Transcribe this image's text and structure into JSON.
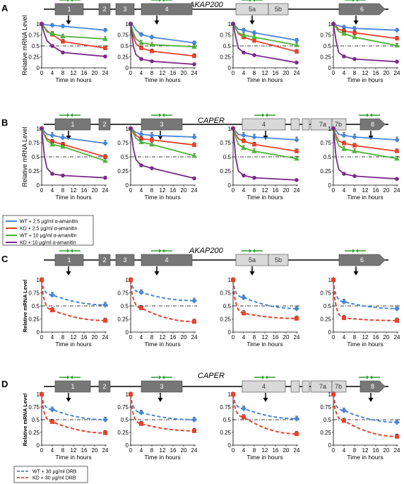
{
  "figure": {
    "panels": [
      {
        "label": "A",
        "gene": "AKAP200"
      },
      {
        "label": "B",
        "gene": "CAPER"
      },
      {
        "label": "C",
        "gene": "AKAP200"
      },
      {
        "label": "D",
        "gene": "CAPER"
      }
    ],
    "axis": {
      "xlabel": "Time in hours",
      "ylabel": "Relative mRNA Level",
      "xticks": [
        "0",
        "4",
        "8",
        "12",
        "16",
        "20",
        "24"
      ],
      "yticks": [
        "0",
        "0.25",
        "0.5",
        "0.75",
        "1"
      ]
    },
    "gene_models": {
      "AKAP200": [
        "1",
        "2",
        "3",
        "4",
        "5a",
        "5b",
        "6"
      ],
      "CAPER": [
        "1",
        "2",
        "3",
        "4",
        "7a",
        "7b",
        "8"
      ]
    },
    "legend_ab": [
      {
        "label": "WT + 2.5 µg/ml α-amanitin",
        "color": "#4a86d8"
      },
      {
        "label": "KD + 2.5 µg/ml α-amanitin",
        "color": "#e8412c"
      },
      {
        "label": "WT + 10 µg/ml α-amanitin",
        "color": "#4fb33a"
      },
      {
        "label": "KD + 10 µg/ml α-amanitin",
        "color": "#7a2a8a"
      }
    ],
    "legend_cd": [
      {
        "label": "WT + 30 µg/ml DRB",
        "color": "#4a86d8"
      },
      {
        "label": "KD + 30 µg/ml DRB",
        "color": "#e8412c"
      }
    ],
    "colors": {
      "wt_low": "#4a86d8",
      "kd_low": "#e8412c",
      "wt_high": "#4fb33a",
      "kd_high": "#7a2a8a",
      "exon_dark": "#777777",
      "exon_light": "#d9d9d9",
      "primer": "#2e9e2e"
    }
  },
  "chart_data": [
    {
      "type": "line",
      "panel": "A",
      "title": "AKAP200 exon 1",
      "xlabel": "Time in hours",
      "ylabel": "Relative mRNA Level",
      "x": [
        0,
        1,
        2,
        4,
        8,
        24
      ],
      "ylim": [
        0,
        1
      ],
      "xlim": [
        0,
        24
      ],
      "reference_line": 0.5,
      "series": [
        {
          "name": "WT + 2.5 µg/ml α-amanitin",
          "values": [
            1,
            0.99,
            0.98,
            0.97,
            0.95,
            0.86
          ]
        },
        {
          "name": "KD + 2.5 µg/ml α-amanitin",
          "values": [
            1,
            0.93,
            0.85,
            0.76,
            0.6,
            0.45
          ]
        },
        {
          "name": "WT + 10 µg/ml α-amanitin",
          "values": [
            1,
            0.92,
            0.82,
            0.78,
            0.72,
            0.66
          ]
        },
        {
          "name": "KD + 10 µg/ml α-amanitin",
          "values": [
            1,
            0.78,
            0.62,
            0.5,
            0.35,
            0.26
          ]
        }
      ]
    },
    {
      "type": "line",
      "panel": "A",
      "title": "AKAP200 exon 4",
      "xlabel": "Time in hours",
      "ylabel": "Relative mRNA Level",
      "x": [
        0,
        1,
        2,
        4,
        8,
        24
      ],
      "ylim": [
        0,
        1
      ],
      "xlim": [
        0,
        24
      ],
      "reference_line": 0.5,
      "series": [
        {
          "name": "WT + 2.5 µg/ml α-amanitin",
          "values": [
            1,
            0.96,
            0.86,
            0.76,
            0.7,
            0.57
          ]
        },
        {
          "name": "KD + 2.5 µg/ml α-amanitin",
          "values": [
            1,
            0.72,
            0.55,
            0.45,
            0.38,
            0.27
          ]
        },
        {
          "name": "WT + 10 µg/ml α-amanitin",
          "values": [
            1,
            0.8,
            0.66,
            0.57,
            0.53,
            0.48
          ]
        },
        {
          "name": "KD + 10 µg/ml α-amanitin",
          "values": [
            1,
            0.5,
            0.3,
            0.2,
            0.15,
            0.08
          ]
        }
      ]
    },
    {
      "type": "line",
      "panel": "A",
      "title": "AKAP200 exon 5a",
      "xlabel": "Time in hours",
      "ylabel": "Relative mRNA Level",
      "x": [
        0,
        1,
        2,
        4,
        8,
        24
      ],
      "ylim": [
        0,
        1
      ],
      "xlim": [
        0,
        24
      ],
      "reference_line": 0.5,
      "series": [
        {
          "name": "WT + 2.5 µg/ml α-amanitin",
          "values": [
            1,
            0.95,
            0.88,
            0.86,
            0.8,
            0.63
          ]
        },
        {
          "name": "KD + 2.5 µg/ml α-amanitin",
          "values": [
            1,
            0.9,
            0.78,
            0.7,
            0.62,
            0.37
          ]
        },
        {
          "name": "WT + 10 µg/ml α-amanitin",
          "values": [
            1,
            0.9,
            0.8,
            0.75,
            0.7,
            0.52
          ]
        },
        {
          "name": "KD + 10 µg/ml α-amanitin",
          "values": [
            1,
            0.7,
            0.45,
            0.35,
            0.29,
            0.12
          ]
        }
      ]
    },
    {
      "type": "line",
      "panel": "A",
      "title": "AKAP200 exon 6",
      "xlabel": "Time in hours",
      "ylabel": "Relative mRNA Level",
      "x": [
        0,
        1,
        2,
        4,
        8,
        24
      ],
      "ylim": [
        0,
        1
      ],
      "xlim": [
        0,
        24
      ],
      "reference_line": 0.5,
      "series": [
        {
          "name": "WT + 2.5 µg/ml α-amanitin",
          "values": [
            1,
            0.98,
            0.96,
            0.93,
            0.9,
            0.86
          ]
        },
        {
          "name": "KD + 2.5 µg/ml α-amanitin",
          "values": [
            1,
            0.95,
            0.88,
            0.84,
            0.8,
            0.67
          ]
        },
        {
          "name": "WT + 10 µg/ml α-amanitin",
          "values": [
            1,
            0.92,
            0.83,
            0.78,
            0.7,
            0.51
          ]
        },
        {
          "name": "KD + 10 µg/ml α-amanitin",
          "values": [
            1,
            0.62,
            0.35,
            0.26,
            0.2,
            0.14
          ]
        }
      ]
    },
    {
      "type": "line",
      "panel": "B",
      "title": "CAPER exon 1",
      "xlabel": "Time in hours",
      "ylabel": "Relative mRNA Level",
      "x": [
        0,
        1,
        2,
        4,
        8,
        24
      ],
      "ylim": [
        0,
        1
      ],
      "xlim": [
        0,
        24
      ],
      "reference_line": 0.5,
      "series": [
        {
          "name": "WT + 2.5 µg/ml α-amanitin",
          "values": [
            1,
            0.95,
            0.9,
            0.88,
            0.84,
            0.74
          ]
        },
        {
          "name": "KD + 2.5 µg/ml α-amanitin",
          "values": [
            1,
            0.9,
            0.82,
            0.77,
            0.72,
            0.5
          ]
        },
        {
          "name": "WT + 10 µg/ml α-amanitin",
          "values": [
            1,
            0.88,
            0.79,
            0.72,
            0.68,
            0.43
          ]
        },
        {
          "name": "KD + 10 µg/ml α-amanitin",
          "values": [
            1,
            0.52,
            0.3,
            0.2,
            0.17,
            0.13
          ]
        }
      ]
    },
    {
      "type": "line",
      "panel": "B",
      "title": "CAPER exon 3",
      "xlabel": "Time in hours",
      "ylabel": "Relative mRNA Level",
      "x": [
        0,
        1,
        2,
        4,
        8,
        24
      ],
      "ylim": [
        0,
        1
      ],
      "xlim": [
        0,
        24
      ],
      "reference_line": 0.5,
      "series": [
        {
          "name": "WT + 2.5 µg/ml α-amanitin",
          "values": [
            1,
            0.97,
            0.93,
            0.9,
            0.88,
            0.85
          ]
        },
        {
          "name": "KD + 2.5 µg/ml α-amanitin",
          "values": [
            1,
            0.95,
            0.88,
            0.82,
            0.8,
            0.71
          ]
        },
        {
          "name": "WT + 10 µg/ml α-amanitin",
          "values": [
            1,
            0.92,
            0.83,
            0.76,
            0.72,
            0.52
          ]
        },
        {
          "name": "KD + 10 µg/ml α-amanitin",
          "values": [
            1,
            0.65,
            0.45,
            0.35,
            0.3,
            0.12
          ]
        }
      ]
    },
    {
      "type": "line",
      "panel": "B",
      "title": "CAPER exon 4",
      "xlabel": "Time in hours",
      "ylabel": "Relative mRNA Level",
      "x": [
        0,
        1,
        2,
        4,
        8,
        24
      ],
      "ylim": [
        0,
        1
      ],
      "xlim": [
        0,
        24
      ],
      "reference_line": 0.5,
      "series": [
        {
          "name": "WT + 2.5 µg/ml α-amanitin",
          "values": [
            1,
            0.95,
            0.9,
            0.88,
            0.85,
            0.8
          ]
        },
        {
          "name": "KD + 2.5 µg/ml α-amanitin",
          "values": [
            1,
            0.9,
            0.82,
            0.78,
            0.72,
            0.6
          ]
        },
        {
          "name": "WT + 10 µg/ml α-amanitin",
          "values": [
            1,
            0.85,
            0.72,
            0.66,
            0.6,
            0.47
          ]
        },
        {
          "name": "KD + 10 µg/ml α-amanitin",
          "values": [
            1,
            0.48,
            0.25,
            0.17,
            0.13,
            0.09
          ]
        }
      ]
    },
    {
      "type": "line",
      "panel": "B",
      "title": "CAPER exon 8",
      "xlabel": "Time in hours",
      "ylabel": "Relative mRNA Level",
      "x": [
        0,
        1,
        2,
        4,
        8,
        24
      ],
      "ylim": [
        0,
        1
      ],
      "xlim": [
        0,
        24
      ],
      "reference_line": 0.5,
      "series": [
        {
          "name": "WT + 2.5 µg/ml α-amanitin",
          "values": [
            1,
            0.96,
            0.9,
            0.88,
            0.85,
            0.8
          ]
        },
        {
          "name": "KD + 2.5 µg/ml α-amanitin",
          "values": [
            1,
            0.88,
            0.78,
            0.74,
            0.7,
            0.6
          ]
        },
        {
          "name": "WT + 10 µg/ml α-amanitin",
          "values": [
            1,
            0.82,
            0.7,
            0.64,
            0.6,
            0.47
          ]
        },
        {
          "name": "KD + 10 µg/ml α-amanitin",
          "values": [
            1,
            0.5,
            0.28,
            0.2,
            0.16,
            0.11
          ]
        }
      ]
    },
    {
      "type": "line",
      "panel": "C",
      "title": "AKAP200 exon 1",
      "xlabel": "Time in hours",
      "ylabel": "Relative mRNA Level",
      "x": [
        0,
        4,
        24
      ],
      "ylim": [
        0,
        1
      ],
      "xlim": [
        0,
        24
      ],
      "reference_line": 0.5,
      "series": [
        {
          "name": "WT + 30 µg/ml DRB",
          "values": [
            1,
            0.71,
            0.52
          ]
        },
        {
          "name": "KD + 30 µg/ml DRB",
          "values": [
            1,
            0.42,
            0.22
          ]
        }
      ]
    },
    {
      "type": "line",
      "panel": "C",
      "title": "AKAP200 exon 4",
      "xlabel": "Time in hours",
      "ylabel": "Relative mRNA Level",
      "x": [
        0,
        4,
        24
      ],
      "ylim": [
        0,
        1
      ],
      "xlim": [
        0,
        24
      ],
      "reference_line": 0.5,
      "series": [
        {
          "name": "WT + 30 µg/ml DRB",
          "values": [
            1,
            0.76,
            0.6
          ]
        },
        {
          "name": "KD + 30 µg/ml DRB",
          "values": [
            1,
            0.46,
            0.2
          ]
        }
      ]
    },
    {
      "type": "line",
      "panel": "C",
      "title": "AKAP200 exon 5a",
      "xlabel": "Time in hours",
      "ylabel": "Relative mRNA Level",
      "x": [
        0,
        4,
        24
      ],
      "ylim": [
        0,
        1
      ],
      "xlim": [
        0,
        24
      ],
      "reference_line": 0.5,
      "series": [
        {
          "name": "WT + 30 µg/ml DRB",
          "values": [
            1,
            0.66,
            0.45
          ]
        },
        {
          "name": "KD + 30 µg/ml DRB",
          "values": [
            1,
            0.36,
            0.26
          ]
        }
      ]
    },
    {
      "type": "line",
      "panel": "C",
      "title": "AKAP200 exon 6",
      "xlabel": "Time in hours",
      "ylabel": "Relative mRNA Level",
      "x": [
        0,
        4,
        24
      ],
      "ylim": [
        0,
        1
      ],
      "xlim": [
        0,
        24
      ],
      "reference_line": 0.5,
      "series": [
        {
          "name": "WT + 30 µg/ml DRB",
          "values": [
            1,
            0.58,
            0.45
          ]
        },
        {
          "name": "KD + 30 µg/ml DRB",
          "values": [
            1,
            0.27,
            0.22
          ]
        }
      ]
    },
    {
      "type": "line",
      "panel": "D",
      "title": "CAPER exon 1",
      "xlabel": "Time in hours",
      "ylabel": "Relative mRNA Level",
      "x": [
        0,
        4,
        24
      ],
      "ylim": [
        0,
        1
      ],
      "xlim": [
        0,
        24
      ],
      "reference_line": 0.5,
      "series": [
        {
          "name": "WT + 30 µg/ml DRB",
          "values": [
            1,
            0.7,
            0.5
          ]
        },
        {
          "name": "KD + 30 µg/ml DRB",
          "values": [
            1,
            0.46,
            0.24
          ]
        }
      ]
    },
    {
      "type": "line",
      "panel": "D",
      "title": "CAPER exon 3",
      "xlabel": "Time in hours",
      "ylabel": "Relative mRNA Level",
      "x": [
        0,
        4,
        24
      ],
      "ylim": [
        0,
        1
      ],
      "xlim": [
        0,
        24
      ],
      "reference_line": 0.5,
      "series": [
        {
          "name": "WT + 30 µg/ml DRB",
          "values": [
            1,
            0.64,
            0.5
          ]
        },
        {
          "name": "KD + 30 µg/ml DRB",
          "values": [
            1,
            0.42,
            0.28
          ]
        }
      ]
    },
    {
      "type": "line",
      "panel": "D",
      "title": "CAPER exon 4",
      "xlabel": "Time in hours",
      "ylabel": "Relative mRNA Level",
      "x": [
        0,
        4,
        24
      ],
      "ylim": [
        0,
        1
      ],
      "xlim": [
        0,
        24
      ],
      "reference_line": 0.5,
      "series": [
        {
          "name": "WT + 30 µg/ml DRB",
          "values": [
            1,
            0.72,
            0.52
          ]
        },
        {
          "name": "KD + 30 µg/ml DRB",
          "values": [
            1,
            0.55,
            0.22
          ]
        }
      ]
    },
    {
      "type": "line",
      "panel": "D",
      "title": "CAPER exon 8",
      "xlabel": "Time in hours",
      "ylabel": "Relative mRNA Level",
      "x": [
        0,
        4,
        24
      ],
      "ylim": [
        0,
        1
      ],
      "xlim": [
        0,
        24
      ],
      "reference_line": 0.5,
      "series": [
        {
          "name": "WT + 30 µg/ml DRB",
          "values": [
            1,
            0.68,
            0.45
          ]
        },
        {
          "name": "KD + 30 µg/ml DRB",
          "values": [
            1,
            0.48,
            0.17
          ]
        }
      ]
    }
  ]
}
